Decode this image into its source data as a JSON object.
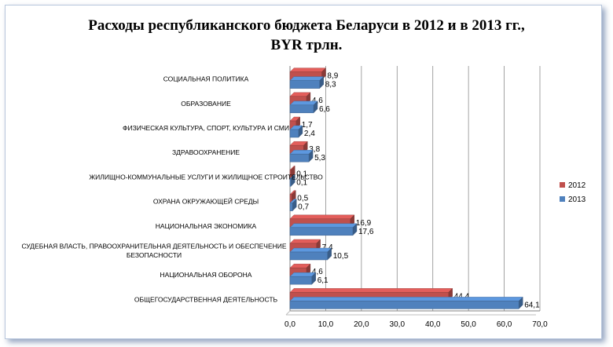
{
  "chart_data": {
    "type": "bar",
    "orientation": "horizontal",
    "title_line1": "Расходы республиканского бюджета Беларуси в 2012 и в 2013 гг.,",
    "title_line2": "BYR трлн.",
    "categories": [
      "СОЦИАЛЬНАЯ ПОЛИТИКА",
      "ОБРАЗОВАНИЕ",
      "ФИЗИЧЕСКАЯ  КУЛЬТУРА, СПОРТ, КУЛЬТУРА И СМИ",
      "ЗДРАВООХРАНЕНИЕ",
      "ЖИЛИЩНО-КОММУНАЛЬНЫЕ  УСЛУГИ И ЖИЛИЩНОЕ СТРОИТЕЛЬСТВО",
      "ОХРАНА  ОКРУЖАЮЩЕЙ  СРЕДЫ",
      "НАЦИОНАЛЬНАЯ ЭКОНОМИКА",
      "СУДЕБНАЯ ВЛАСТЬ, ПРАВООХРАНИТЕЛЬНАЯ  ДЕЯТЕЛЬНОСТЬ И ОБЕСПЕЧЕНИЕ\nБЕЗОПАСНОСТИ",
      "НАЦИОНАЛЬНАЯ ОБОРОНА",
      "ОБЩЕГОСУДАРСТВЕННАЯ  ДЕЯТЕЛЬНОСТЬ"
    ],
    "series": [
      {
        "name": "2012",
        "color": "#c0504d",
        "values": [
          8.9,
          4.6,
          1.7,
          3.8,
          0.1,
          0.5,
          16.9,
          7.4,
          4.6,
          44.4
        ]
      },
      {
        "name": "2013",
        "color": "#4f81bd",
        "values": [
          8.3,
          6.6,
          2.4,
          5.3,
          0.1,
          0.7,
          17.6,
          10.5,
          6.1,
          64.1
        ]
      }
    ],
    "x_ticks": [
      "0,0",
      "10,0",
      "20,0",
      "30,0",
      "40,0",
      "50,0",
      "60,0",
      "70,0"
    ],
    "xlim": [
      0,
      70
    ],
    "grid": true,
    "legend_position": "right",
    "legend_order": [
      "2012",
      "2013"
    ]
  }
}
